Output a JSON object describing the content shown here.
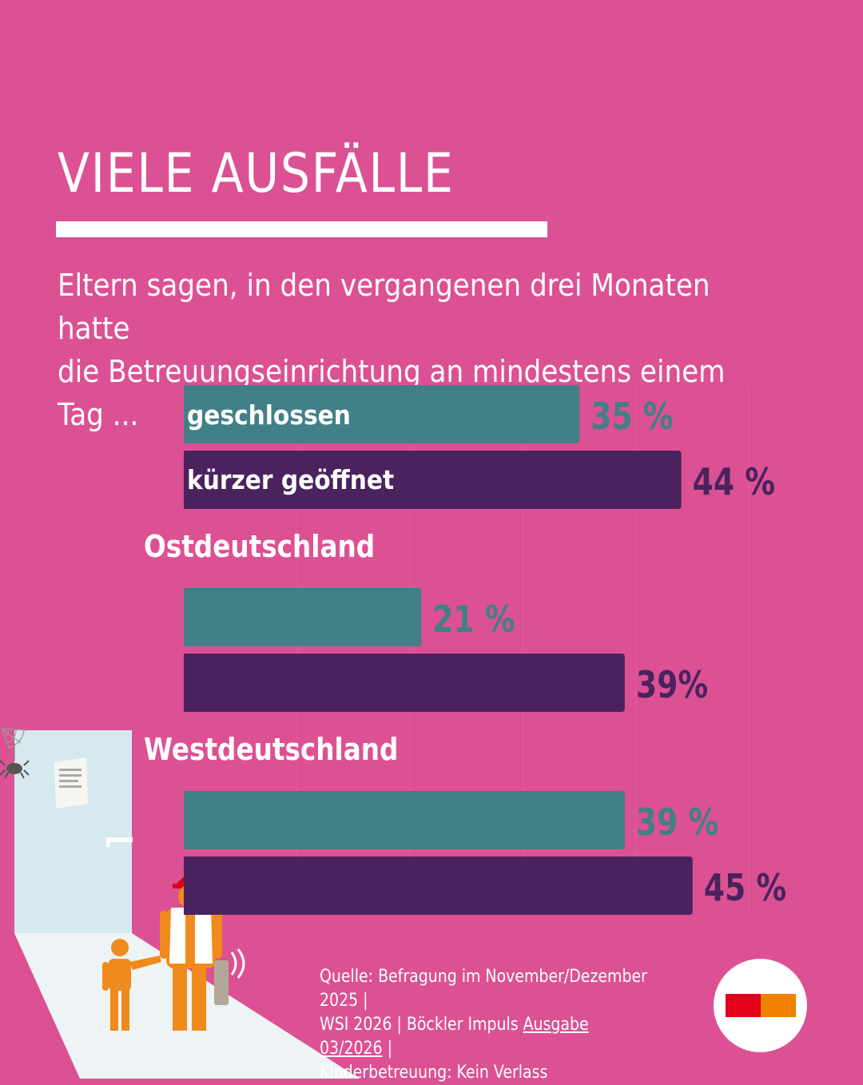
{
  "title": "VIELE AUSFÄLLE",
  "subtitle": {
    "line1": "Eltern sagen, in den vergangenen drei Monaten hatte",
    "line2": "die Betreuungseinrichtung an mindestens einem Tag ..."
  },
  "colors": {
    "background": "#dc5193",
    "teal": "#418086",
    "purple": "#4a235e",
    "white": "#ffffff"
  },
  "chart_data": {
    "type": "bar",
    "orientation": "horizontal",
    "xlim": [
      0,
      100
    ],
    "series": [
      {
        "name": "geschlossen",
        "color": "#418086"
      },
      {
        "name": "kürzer geöffnet",
        "color": "#4a235e"
      }
    ],
    "groups": [
      {
        "label": "",
        "values": [
          35,
          44
        ],
        "value_labels": [
          "35 %",
          "44 %"
        ]
      },
      {
        "label": "Ostdeutschland",
        "values": [
          21,
          39
        ],
        "value_labels": [
          "21 %",
          "39%"
        ]
      },
      {
        "label": "Westdeutschland",
        "values": [
          39,
          45
        ],
        "value_labels": [
          "39 %",
          "45 %"
        ]
      }
    ]
  },
  "source": {
    "prefix": "Quelle: Befragung im November/Dezember 2025 |",
    "line2_prefix": "WSI 2026 | Böckler Impuls ",
    "link": "Ausgabe 03/2026",
    "line2_suffix": " |",
    "line3": "Kinderbetreuung: Kein Verlass"
  },
  "logo": {
    "left_color": "#e2001a",
    "right_color": "#f08200"
  },
  "illustration": {
    "icons": [
      "door-icon",
      "notice-paper-icon",
      "spider-icon",
      "cobweb-icon",
      "child-icon",
      "worker-parent-icon",
      "phone-vibrating-icon"
    ]
  }
}
